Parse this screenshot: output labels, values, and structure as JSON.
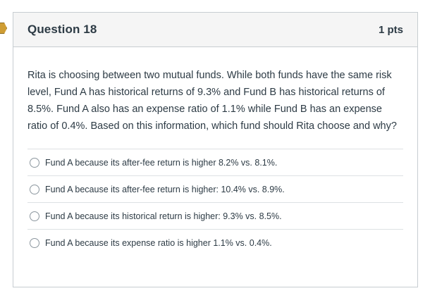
{
  "question": {
    "title": "Question 18",
    "points": "1 pts",
    "text": "Rita is choosing between two mutual funds. While both funds have the same risk level, Fund A has historical returns of 9.3% and Fund B has historical returns of 8.5%. Fund A also has an expense ratio of 1.1% while Fund B has an expense ratio of 0.4%. Based on this information, which fund should Rita choose and why?",
    "answers": [
      {
        "label": "Fund A because its after-fee return is higher 8.2% vs. 8.1%."
      },
      {
        "label": "Fund A because its after-fee return is higher: 10.4% vs. 8.9%."
      },
      {
        "label": "Fund A because its historical return is higher: 9.3% vs. 8.5%."
      },
      {
        "label": "Fund A because its expense ratio is higher 1.1% vs. 0.4%."
      }
    ]
  },
  "colors": {
    "text": "#2d3b45",
    "header_bg": "#f5f5f5",
    "border": "#c7cdd1",
    "flag": "#cf9d34"
  },
  "icons": {
    "flag_marker": "bookmark-flag-icon",
    "radio": "radio-button-icon"
  }
}
